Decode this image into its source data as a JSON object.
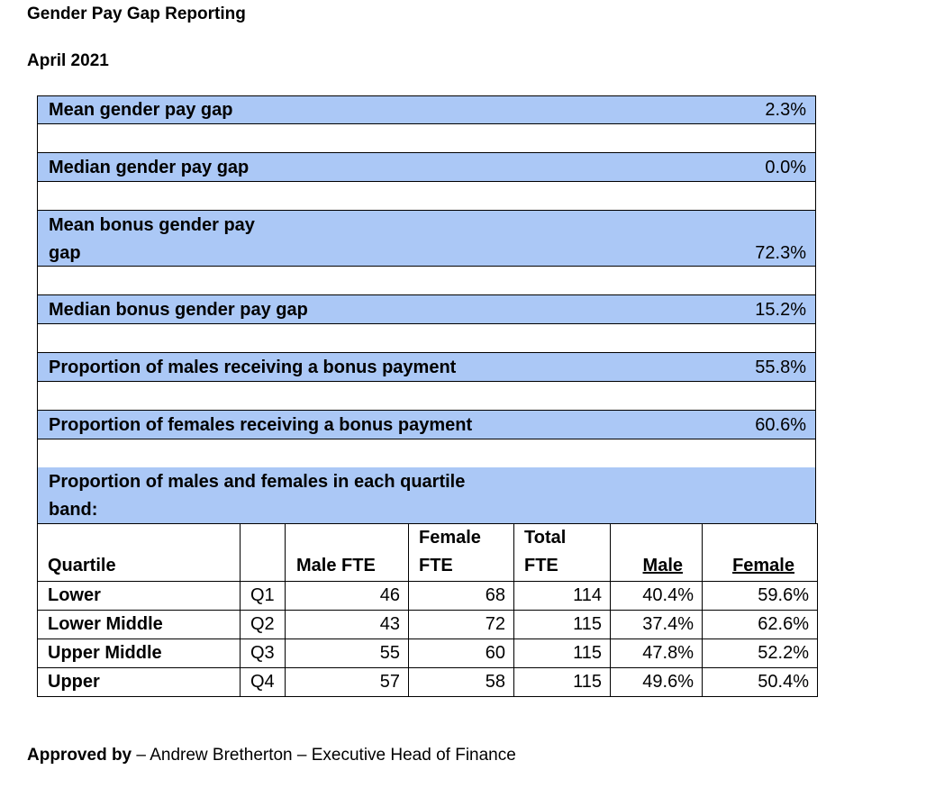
{
  "header": {
    "title": "Gender Pay Gap Reporting",
    "date": "April 2021"
  },
  "metrics": [
    {
      "label": "Mean gender pay gap",
      "value": "2.3%"
    },
    {
      "label": "Median gender pay gap",
      "value": "0.0%"
    },
    {
      "label_line1": "Mean bonus gender pay",
      "label_line2": "gap",
      "value": "72.3%"
    },
    {
      "label": "Median bonus gender pay gap",
      "value": "15.2%"
    },
    {
      "label": "Proportion of males receiving a bonus payment",
      "value": "55.8%"
    },
    {
      "label": "Proportion of females receiving a bonus payment",
      "value": "60.6%"
    }
  ],
  "quartile_section": {
    "title_line1": "Proportion of males and females in each quartile",
    "title_line2": "band:"
  },
  "quartile_table": {
    "headers": {
      "quartile": "Quartile",
      "male_fte": "Male FTE",
      "female_fte_1": "Female",
      "female_fte_2": "FTE",
      "total_fte_1": "Total",
      "total_fte_2": "FTE",
      "male": "Male",
      "female": "Female"
    },
    "rows": [
      {
        "name": "Lower",
        "code": "Q1",
        "male_fte": "46",
        "female_fte": "68",
        "total_fte": "114",
        "male": "40.4%",
        "female": "59.6%"
      },
      {
        "name": "Lower Middle",
        "code": "Q2",
        "male_fte": "43",
        "female_fte": "72",
        "total_fte": "115",
        "male": "37.4%",
        "female": "62.6%"
      },
      {
        "name": "Upper Middle",
        "code": "Q3",
        "male_fte": "55",
        "female_fte": "60",
        "total_fte": "115",
        "male": "47.8%",
        "female": "52.2%"
      },
      {
        "name": "Upper",
        "code": "Q4",
        "male_fte": "57",
        "female_fte": "58",
        "total_fte": "115",
        "male": "49.6%",
        "female": "50.4%"
      }
    ]
  },
  "footer": {
    "approved_label": "Approved by",
    "approved_text": " – Andrew Bretherton – Executive Head of Finance"
  }
}
